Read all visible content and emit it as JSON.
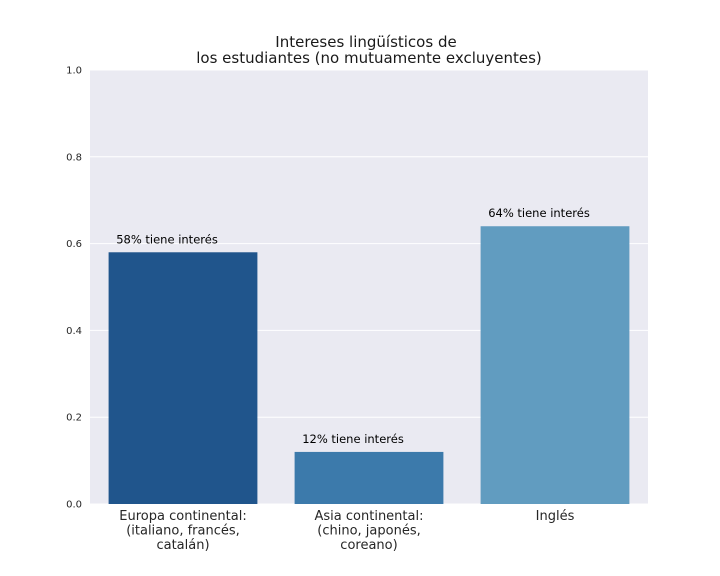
{
  "chart_data": {
    "type": "bar",
    "title_lines": [
      "Intereses lingüísticos de",
      "los estudiantes (no mutuamente excluyentes)"
    ],
    "xlabel": "",
    "ylabel": "",
    "ylim": [
      0,
      1.0
    ],
    "yticks": [
      "0.0",
      "0.2",
      "0.4",
      "0.6",
      "0.8",
      "1.0"
    ],
    "grid": true,
    "categories": [
      [
        "Europa continental:",
        "(italiano, francés,",
        "catalán)"
      ],
      [
        "Asia continental:",
        "(chino, japonés,",
        "coreano)"
      ],
      [
        "Inglés"
      ]
    ],
    "values": [
      0.58,
      0.12,
      0.64
    ],
    "data_labels": [
      "58% tiene interés",
      "12% tiene interés",
      "64% tiene interés"
    ],
    "colors": [
      "#20558c",
      "#3c7aab",
      "#619cc0"
    ],
    "background": "#eaeaf2"
  }
}
